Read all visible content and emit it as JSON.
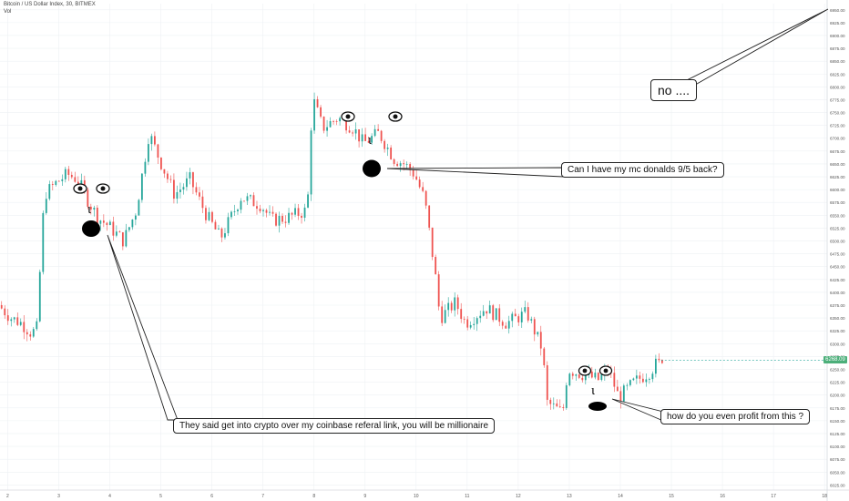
{
  "header": {
    "symbol": "Bitcoin / US Dollar Index, 30, BITMEX",
    "volume": "Vol"
  },
  "price_tag": "6268.09",
  "annotations": {
    "b1": "They said get into crypto over my coinbase referal link, you will be millionaire",
    "b2": "Can I have my mc donalds 9/5 back?",
    "b3": "how do you even profit from this ?",
    "b4": "no ....",
    "face_nose_glyph": "ι"
  },
  "chart_data": {
    "type": "line",
    "x_labels": [
      "2",
      "3",
      "4",
      "5",
      "6",
      "7",
      "8",
      "9",
      "10",
      "11",
      "12",
      "13",
      "14",
      "15",
      "16",
      "17",
      "18"
    ],
    "y_ticks": [
      6025,
      6050,
      6075,
      6100,
      6125,
      6150,
      6175,
      6200,
      6225,
      6250,
      6275,
      6300,
      6325,
      6350,
      6375,
      6400,
      6425,
      6450,
      6475,
      6500,
      6525,
      6550,
      6575,
      6600,
      6625,
      6650,
      6675,
      6700,
      6725,
      6750,
      6775,
      6800,
      6825,
      6850,
      6875,
      6900,
      6925,
      6950
    ],
    "ylim": [
      6015,
      6962
    ],
    "xlim": [
      1.85,
      18.05
    ],
    "series": [
      {
        "x": [
          1.85,
          2.1,
          2.3,
          2.5,
          2.6,
          2.75,
          3.0,
          3.2,
          3.4,
          3.6,
          3.8,
          4.0,
          4.3,
          4.55,
          4.8,
          5.0,
          5.3,
          5.6,
          5.9,
          6.2,
          6.6,
          7.0,
          7.2,
          7.5,
          7.9,
          8.0,
          8.2,
          8.5,
          8.8,
          9.0,
          9.3,
          9.6,
          9.8,
          10.0,
          10.2,
          10.4,
          10.5,
          10.8,
          11.0,
          11.4,
          11.8,
          12.2,
          12.5,
          12.6,
          12.9,
          13.0,
          13.3,
          13.6,
          13.8,
          14.0,
          14.3,
          14.6,
          14.8
        ],
        "values": [
          6375,
          6350,
          6340,
          6320,
          6330,
          6590,
          6615,
          6630,
          6620,
          6580,
          6545,
          6530,
          6500,
          6560,
          6710,
          6660,
          6590,
          6620,
          6555,
          6505,
          6585,
          6570,
          6540,
          6545,
          6560,
          6780,
          6720,
          6740,
          6720,
          6690,
          6710,
          6660,
          6650,
          6630,
          6580,
          6440,
          6350,
          6380,
          6340,
          6370,
          6340,
          6360,
          6290,
          6185,
          6165,
          6250,
          6240,
          6230,
          6250,
          6195,
          6225,
          6245,
          6268
        ]
      }
    ],
    "grid": true
  },
  "colors": {
    "up": "#26a69a",
    "down": "#ef5350",
    "grid": "#eef1f4",
    "axis_text": "#555555",
    "last_price": "#4caf7a"
  }
}
